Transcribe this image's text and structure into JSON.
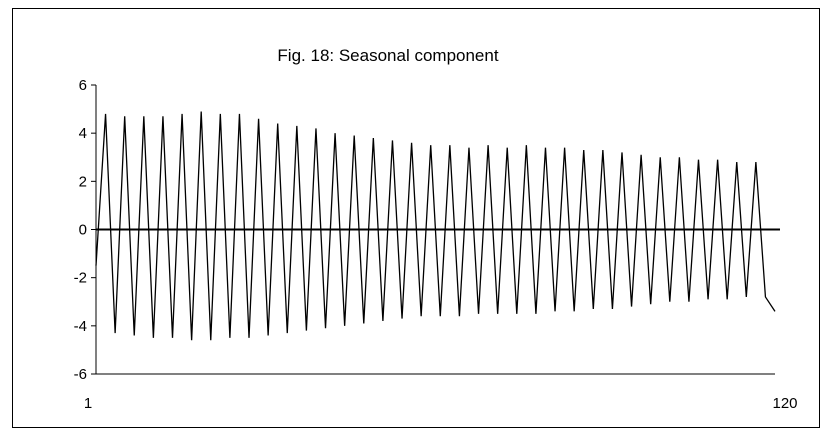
{
  "chart_data": {
    "type": "line",
    "title": "Fig. 18: Seasonal component",
    "xlabel": "",
    "ylabel": "",
    "xlim": [
      1,
      120
    ],
    "ylim": [
      -6,
      6
    ],
    "x_tick_labels": [
      "1",
      "120"
    ],
    "y_tick_labels": [
      "6",
      "4",
      "2",
      "0",
      "-2",
      "-4",
      "-6"
    ],
    "y_tick_values": [
      6,
      4,
      2,
      0,
      -2,
      -4,
      -6
    ],
    "x_tick_values": [
      1,
      120
    ],
    "grid": false,
    "legend": "none",
    "line_color": "#000000",
    "zero_line": true,
    "series": [
      {
        "values": [
          -1.5,
          4.8,
          -4.3,
          4.7,
          -4.4,
          4.7,
          -4.5,
          4.7,
          -4.5,
          4.8,
          -4.6,
          4.9,
          -4.6,
          4.8,
          -4.5,
          4.8,
          -4.5,
          4.6,
          -4.4,
          4.4,
          -4.3,
          4.3,
          -4.2,
          4.2,
          -4.1,
          4.0,
          -4.0,
          3.9,
          -3.9,
          3.8,
          -3.8,
          3.7,
          -3.7,
          3.6,
          -3.6,
          3.5,
          -3.6,
          3.5,
          -3.6,
          3.4,
          -3.5,
          3.5,
          -3.5,
          3.4,
          -3.5,
          3.5,
          -3.5,
          3.4,
          -3.4,
          3.4,
          -3.4,
          3.3,
          -3.3,
          3.3,
          -3.3,
          3.2,
          -3.2,
          3.1,
          -3.1,
          3.0,
          -3.0,
          3.0,
          -3.0,
          2.9,
          -2.9,
          2.9,
          -2.9,
          2.8,
          -2.8,
          2.8,
          -2.8,
          -3.4
        ]
      }
    ]
  }
}
